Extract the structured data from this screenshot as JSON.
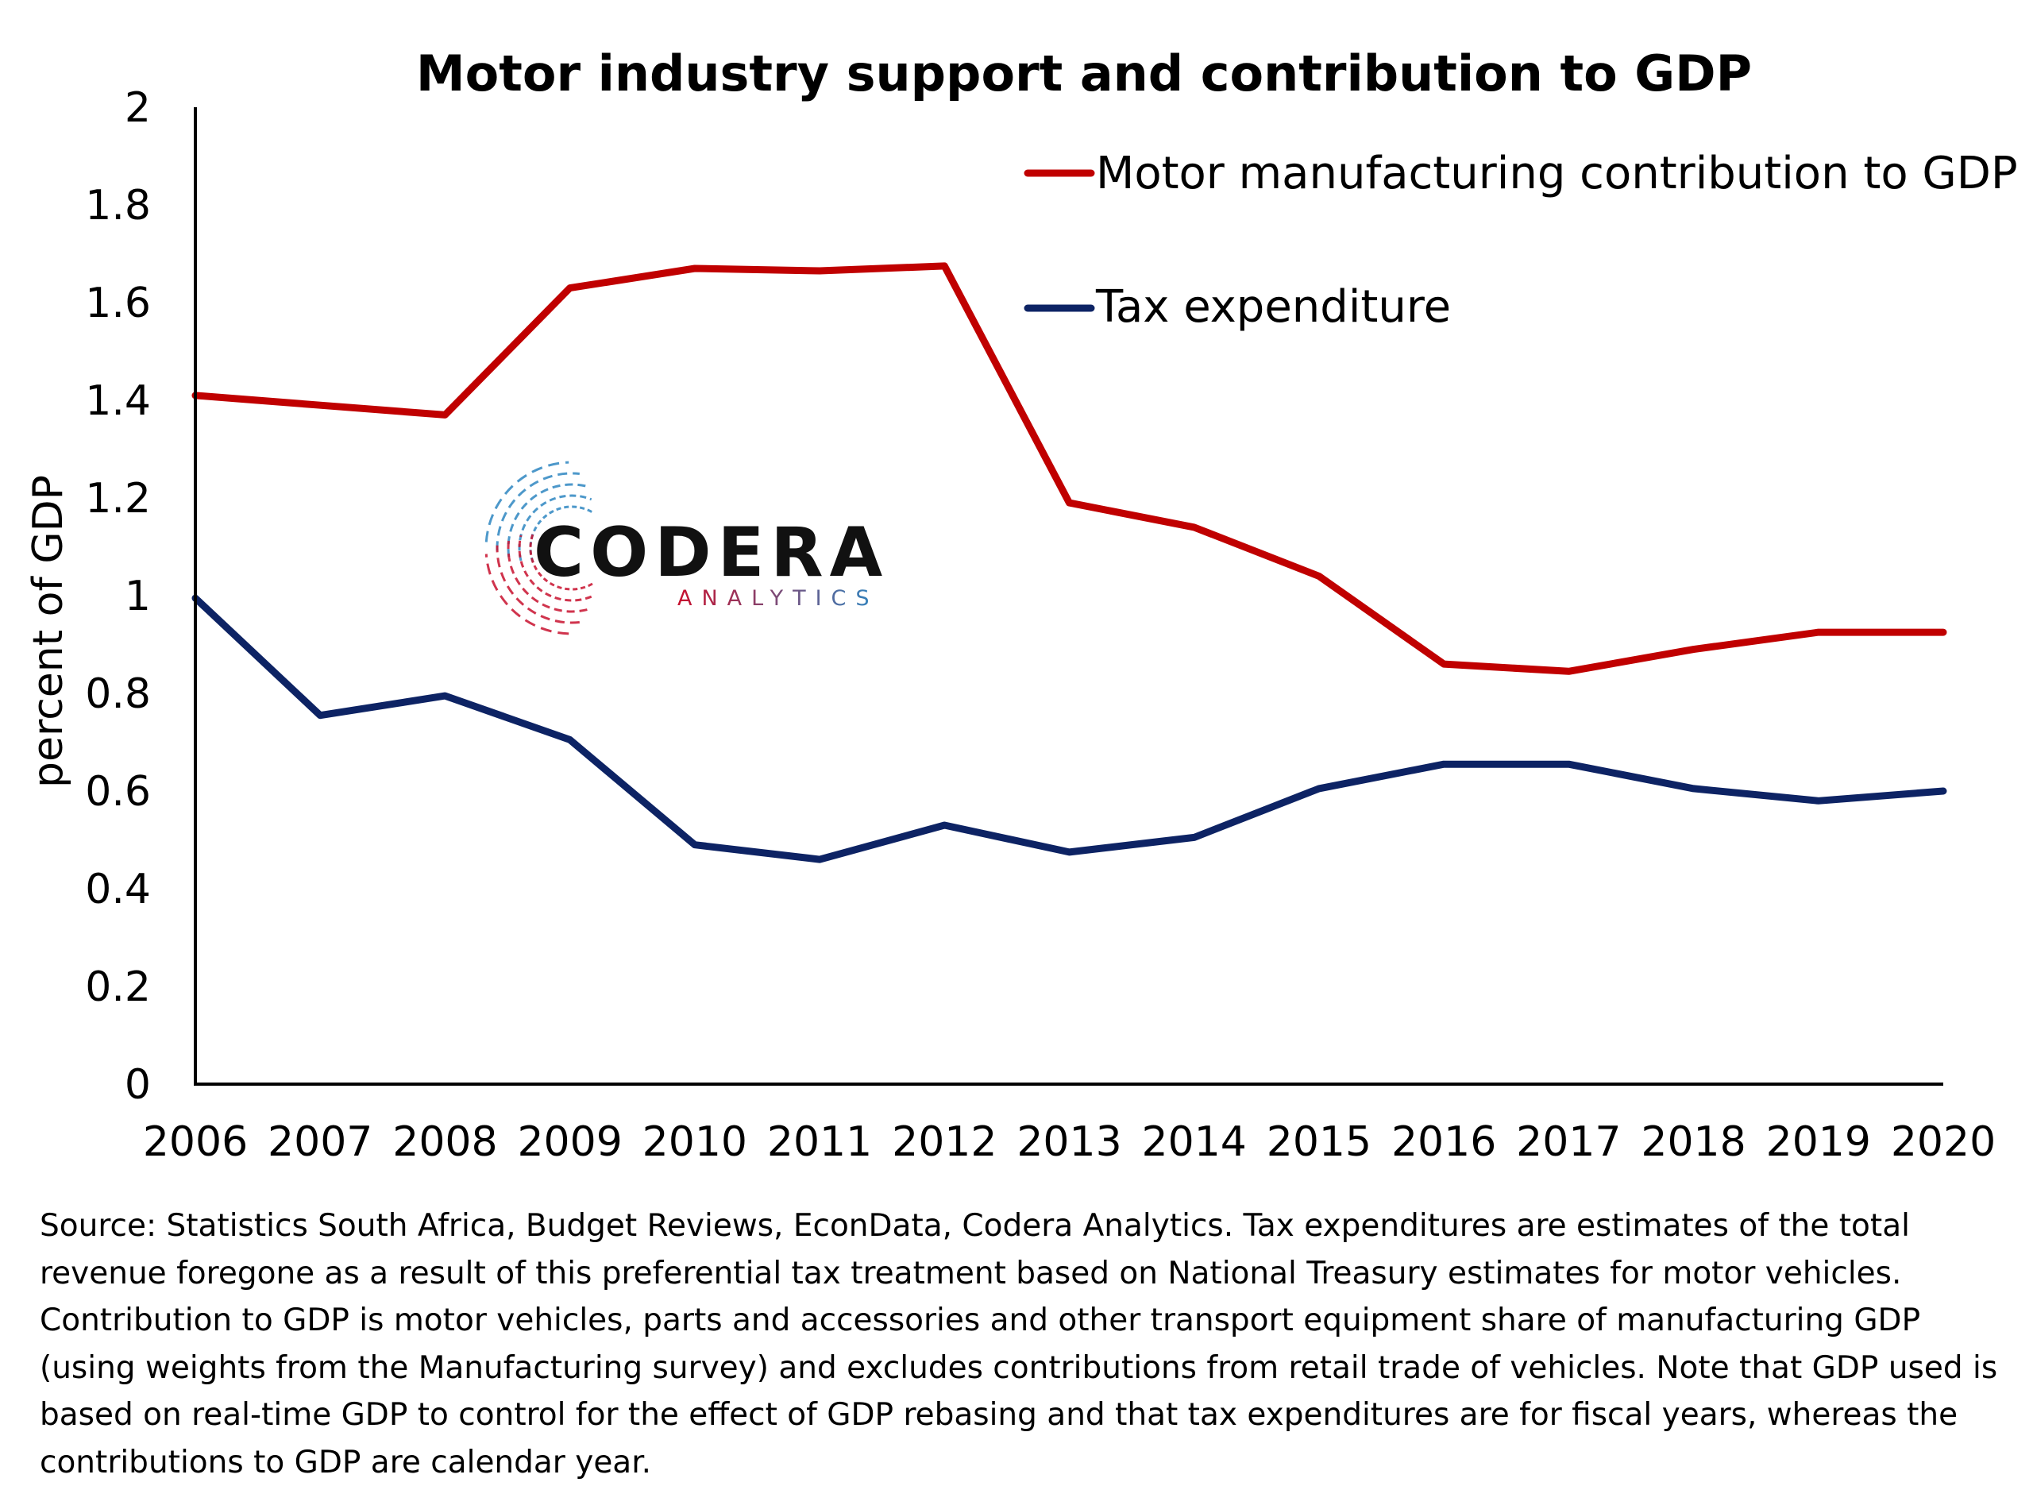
{
  "chart_data": {
    "type": "line",
    "title": "Motor industry support and contribution to GDP",
    "xlabel": "",
    "ylabel": "percent of GDP",
    "x": [
      "2006",
      "2007",
      "2008",
      "2009",
      "2010",
      "2011",
      "2012",
      "2013",
      "2014",
      "2015",
      "2016",
      "2017",
      "2018",
      "2019",
      "2020"
    ],
    "ylim": [
      0,
      2
    ],
    "yticks": [
      "0",
      "0.2",
      "0.4",
      "0.6",
      "0.8",
      "1",
      "1.2",
      "1.4",
      "1.6",
      "1.8",
      "2"
    ],
    "grid": false,
    "legend_position": "top-right",
    "series": [
      {
        "name": "Motor manufacturing contribution to GDP",
        "color": "#C00000",
        "values": [
          1.41,
          1.39,
          1.37,
          1.63,
          1.67,
          1.665,
          1.675,
          1.19,
          1.14,
          1.04,
          0.86,
          0.845,
          0.89,
          0.925,
          0.925
        ]
      },
      {
        "name": "Tax expenditure",
        "color": "#0D2364",
        "values": [
          0.995,
          0.755,
          0.795,
          0.705,
          0.49,
          0.46,
          0.53,
          0.475,
          0.505,
          0.605,
          0.655,
          0.655,
          0.605,
          0.58,
          0.6
        ]
      }
    ]
  },
  "logo": {
    "main": "CODERA",
    "sub": "ANALYTICS",
    "colors": [
      "#C8102E",
      "#2E86C1"
    ]
  },
  "source_note": "Source: Statistics South Africa, Budget Reviews, EconData, Codera Analytics. Tax expenditures are estimates of the total revenue foregone as a result of this preferential tax treatment based on National Treasury estimates for motor vehicles. Contribution to GDP is motor vehicles, parts and accessories and other transport equipment share of manufacturing GDP (using weights from the Manufacturing survey) and excludes contributions from retail trade of vehicles. Note that GDP used is based on real-time GDP to control for the effect of GDP rebasing and that tax expenditures are for fiscal years, whereas the contributions to GDP are calendar year."
}
